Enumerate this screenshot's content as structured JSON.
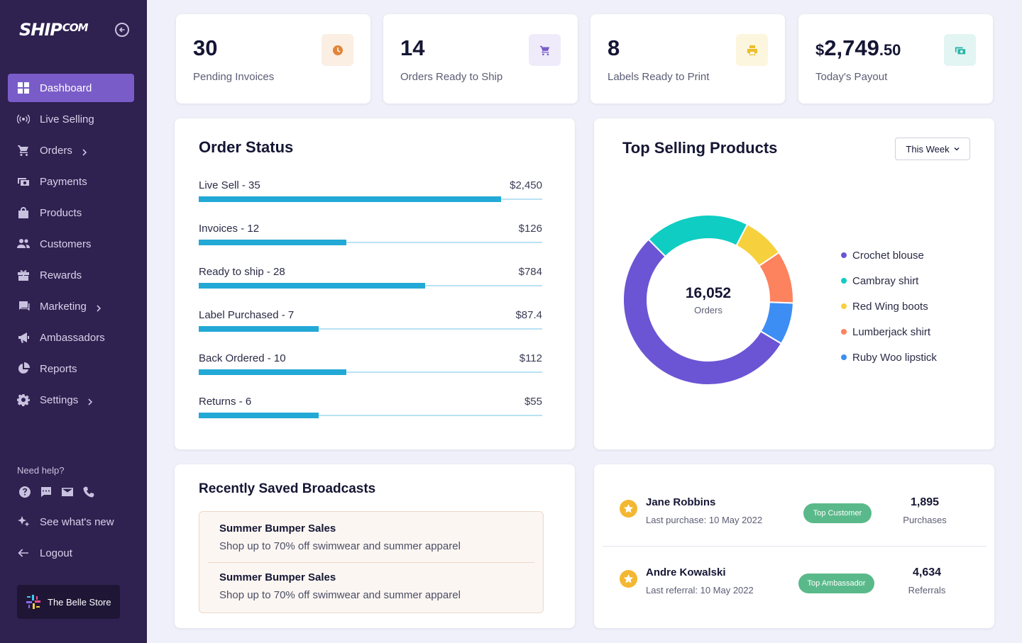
{
  "brand": {
    "logo_main": "SHIP",
    "logo_sub": "COM"
  },
  "sidebar": {
    "items": [
      {
        "label": "Dashboard",
        "icon": "dashboard-icon",
        "active": true,
        "chevron": false
      },
      {
        "label": "Live Selling",
        "icon": "broadcast-icon",
        "active": false,
        "chevron": false
      },
      {
        "label": "Orders",
        "icon": "cart-icon",
        "active": false,
        "chevron": true
      },
      {
        "label": "Payments",
        "icon": "payments-icon",
        "active": false,
        "chevron": false
      },
      {
        "label": "Products",
        "icon": "bag-icon",
        "active": false,
        "chevron": false
      },
      {
        "label": "Customers",
        "icon": "people-icon",
        "active": false,
        "chevron": false
      },
      {
        "label": "Rewards",
        "icon": "gift-icon",
        "active": false,
        "chevron": false
      },
      {
        "label": "Marketing",
        "icon": "chat-icon",
        "active": false,
        "chevron": true
      },
      {
        "label": "Ambassadors",
        "icon": "megaphone-icon",
        "active": false,
        "chevron": false
      },
      {
        "label": "Reports",
        "icon": "pie-icon",
        "active": false,
        "chevron": false
      },
      {
        "label": "Settings",
        "icon": "gear-icon",
        "active": false,
        "chevron": true
      }
    ],
    "help_title": "Need help?",
    "whats_new": "See what's new",
    "logout": "Logout",
    "store_name": "The Belle Store"
  },
  "stats": [
    {
      "value": "30",
      "label": "Pending Invoices",
      "icon": "clock-icon",
      "icon_color": "#e0863a",
      "icon_bg": "#fbeee3"
    },
    {
      "value": "14",
      "label": "Orders Ready to Ship",
      "icon": "cart-icon",
      "icon_color": "#7a5cc9",
      "icon_bg": "#efebfa"
    },
    {
      "value": "8",
      "label": "Labels Ready to Print",
      "icon": "printer-icon",
      "icon_color": "#ebbd2a",
      "icon_bg": "#fdf6de"
    },
    {
      "value_currency": "$",
      "value_main": "2,749",
      "value_cents": ".50",
      "label": "Today's Payout",
      "icon": "cash-icon",
      "icon_color": "#2bb3a8",
      "icon_bg": "#e3f5f3"
    }
  ],
  "order_status": {
    "title": "Order Status",
    "rows": [
      {
        "label": "Live Sell - 35",
        "amount": "$2,450",
        "fraction": 0.88
      },
      {
        "label": "Invoices - 12",
        "amount": "$126",
        "fraction": 0.43
      },
      {
        "label": "Ready to ship - 28",
        "amount": "$784",
        "fraction": 0.66
      },
      {
        "label": "Label Purchased - 7",
        "amount": "$87.4",
        "fraction": 0.35
      },
      {
        "label": "Back Ordered - 10",
        "amount": "$112",
        "fraction": 0.43
      },
      {
        "label": "Returns - 6",
        "amount": "$55",
        "fraction": 0.35
      }
    ]
  },
  "top_products": {
    "title": "Top Selling Products",
    "filter": "This Week",
    "center_value": "16,052",
    "center_label": "Orders"
  },
  "chart_data": {
    "type": "pie",
    "series": [
      {
        "name": "Crochet blouse",
        "value": 54,
        "color": "#6b55d4"
      },
      {
        "name": "Cambray shirt",
        "value": 20,
        "color": "#0fcdc2"
      },
      {
        "name": "Red Wing boots",
        "value": 8,
        "color": "#f6d13d"
      },
      {
        "name": "Lumberjack shirt",
        "value": 10,
        "color": "#fd825e"
      },
      {
        "name": "Ruby Woo lipstick",
        "value": 8,
        "color": "#3d8ef4"
      }
    ]
  },
  "broadcasts": {
    "title": "Recently Saved Broadcasts",
    "items": [
      {
        "title": "Summer Bumper Sales",
        "desc": "Shop up to 70% off swimwear and summer apparel"
      },
      {
        "title": "Summer Bumper Sales",
        "desc": "Shop up to 70% off swimwear and summer apparel"
      }
    ]
  },
  "top_people": [
    {
      "name": "Jane Robbins",
      "sub": "Last purchase: 10 May 2022",
      "badge": "Top Customer",
      "count": "1,895",
      "count_label": "Purchases"
    },
    {
      "name": "Andre Kowalski",
      "sub": "Last referral: 10 May 2022",
      "badge": "Top Ambassador",
      "count": "4,634",
      "count_label": "Referrals"
    }
  ]
}
